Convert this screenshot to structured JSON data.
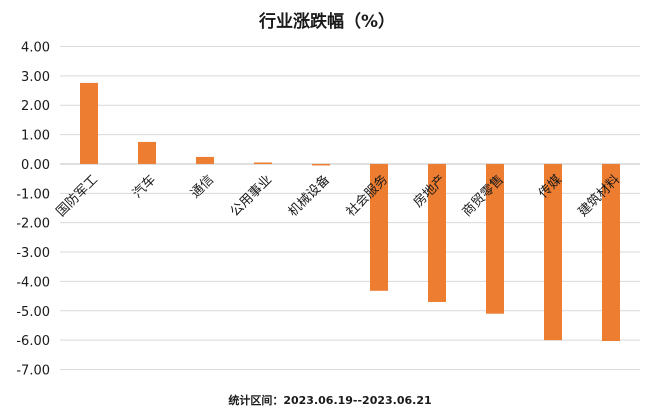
{
  "chart_data": {
    "type": "bar",
    "title": "行业涨跌幅（%）",
    "categories": [
      "国防军工",
      "汽车",
      "通信",
      "公用事业",
      "机械设备",
      "社会服务",
      "房地产",
      "商贸零售",
      "传媒",
      "建筑材料"
    ],
    "values": [
      2.76,
      0.75,
      0.24,
      0.05,
      -0.05,
      -4.32,
      -4.7,
      -5.1,
      -6.0,
      -6.03
    ],
    "ylim": [
      -7,
      4
    ],
    "yticks": [
      "4.00",
      "3.00",
      "2.00",
      "1.00",
      "0.00",
      "-1.00",
      "-2.00",
      "-3.00",
      "-4.00",
      "-5.00",
      "-6.00",
      "-7.00"
    ],
    "grid": true,
    "legend": "none",
    "bar_color": "#ED7D31",
    "footer": "统计区间：2023.06.19--2023.06.21"
  }
}
